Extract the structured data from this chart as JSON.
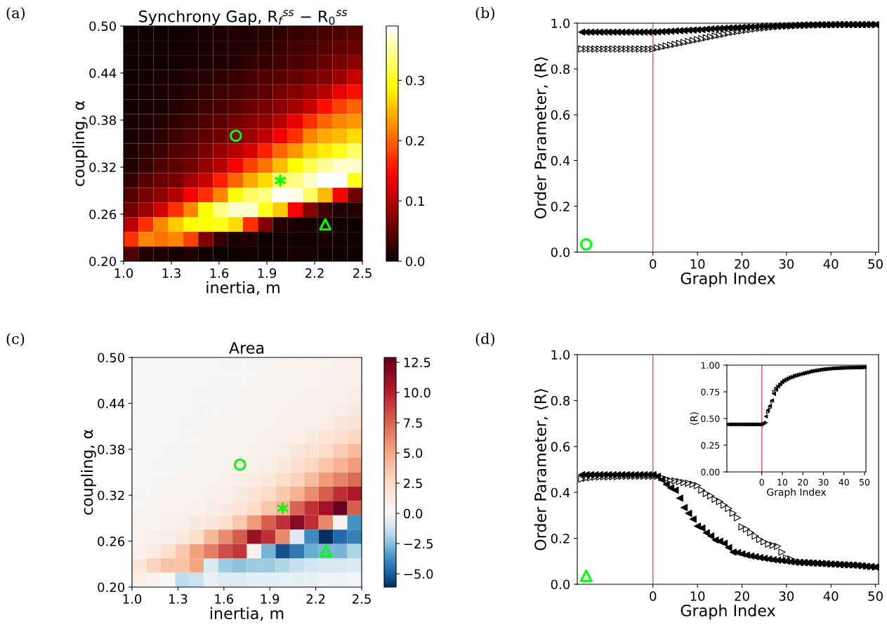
{
  "chart_data": [
    {
      "type": "heatmap",
      "title": "Synchrony Gap, R$_{f}$$^{ss}$ − R$_{0}$$^{ss}$",
      "xlabel": "inertia, m",
      "ylabel": "coupling, α",
      "annotations": [
        "(a)"
      ],
      "clim": [
        0,
        0.39
      ],
      "cticks": [
        {
          "value": 0,
          "label": "0.0"
        },
        {
          "value": 0.1,
          "label": "0.1"
        },
        {
          "value": 0.2,
          "label": "0.2"
        },
        {
          "value": 0.3,
          "label": "0.3"
        }
      ],
      "xlim": [
        1.0,
        2.5
      ],
      "ylim": [
        0.2,
        0.5
      ],
      "xticks": [
        {
          "value": 1.0,
          "label": "1.0"
        },
        {
          "value": 1.3,
          "label": "1.3"
        },
        {
          "value": 1.6,
          "label": "1.6"
        },
        {
          "value": 1.9,
          "label": "1.9"
        },
        {
          "value": 2.2,
          "label": "2.2"
        },
        {
          "value": 2.5,
          "label": "2.5"
        }
      ],
      "yticks": [
        {
          "value": 0.2,
          "label": "0.20"
        },
        {
          "value": 0.26,
          "label": "0.26"
        },
        {
          "value": 0.32,
          "label": "0.32"
        },
        {
          "value": 0.38,
          "label": "0.38"
        },
        {
          "value": 0.44,
          "label": "0.44"
        },
        {
          "value": 0.5,
          "label": "0.50"
        }
      ],
      "cells": [
        [
          0.005,
          0.005,
          0.005,
          0.006,
          0.006,
          0.008,
          0.012,
          0.014,
          0.014,
          0.018,
          0.022,
          0.026,
          0.03,
          0.035,
          0.04,
          0.045
        ],
        [
          0.004,
          0.005,
          0.005,
          0.006,
          0.007,
          0.01,
          0.013,
          0.016,
          0.018,
          0.022,
          0.027,
          0.032,
          0.038,
          0.045,
          0.05,
          0.055
        ],
        [
          0.004,
          0.005,
          0.006,
          0.007,
          0.009,
          0.012,
          0.015,
          0.018,
          0.022,
          0.027,
          0.032,
          0.038,
          0.045,
          0.055,
          0.065,
          0.075
        ],
        [
          0.004,
          0.006,
          0.008,
          0.01,
          0.014,
          0.018,
          0.022,
          0.028,
          0.034,
          0.04,
          0.046,
          0.054,
          0.062,
          0.07,
          0.085,
          0.11
        ],
        [
          0.005,
          0.007,
          0.01,
          0.013,
          0.018,
          0.024,
          0.03,
          0.036,
          0.042,
          0.05,
          0.06,
          0.07,
          0.085,
          0.1,
          0.13,
          0.15
        ],
        [
          0.006,
          0.009,
          0.012,
          0.016,
          0.022,
          0.03,
          0.038,
          0.045,
          0.055,
          0.065,
          0.075,
          0.09,
          0.11,
          0.15,
          0.18,
          0.2
        ],
        [
          0.008,
          0.012,
          0.016,
          0.022,
          0.03,
          0.04,
          0.05,
          0.06,
          0.07,
          0.08,
          0.1,
          0.13,
          0.17,
          0.2,
          0.22,
          0.23
        ],
        [
          0.01,
          0.015,
          0.02,
          0.03,
          0.04,
          0.05,
          0.06,
          0.07,
          0.085,
          0.105,
          0.14,
          0.17,
          0.22,
          0.24,
          0.25,
          0.27
        ],
        [
          0.012,
          0.02,
          0.03,
          0.04,
          0.05,
          0.065,
          0.085,
          0.1,
          0.12,
          0.16,
          0.2,
          0.23,
          0.26,
          0.28,
          0.3,
          0.33
        ],
        [
          0.015,
          0.025,
          0.04,
          0.05,
          0.06,
          0.08,
          0.1,
          0.14,
          0.18,
          0.21,
          0.25,
          0.29,
          0.32,
          0.35,
          0.37,
          0.37
        ],
        [
          0.025,
          0.045,
          0.055,
          0.065,
          0.09,
          0.11,
          0.16,
          0.2,
          0.24,
          0.27,
          0.33,
          0.34,
          0.37,
          0.39,
          0.39,
          0.3
        ],
        [
          0.045,
          0.065,
          0.075,
          0.1,
          0.14,
          0.17,
          0.22,
          0.29,
          0.33,
          0.34,
          0.39,
          0.38,
          0.33,
          0.25,
          0.14,
          0.06
        ],
        [
          0.06,
          0.085,
          0.115,
          0.17,
          0.22,
          0.29,
          0.34,
          0.37,
          0.37,
          0.3,
          0.26,
          0.14,
          0.07,
          0.03,
          0.015,
          0.015
        ],
        [
          0.105,
          0.17,
          0.22,
          0.26,
          0.29,
          0.29,
          0.3,
          0.27,
          0.17,
          0.07,
          0.015,
          0.01,
          0.008,
          0.008,
          0.006,
          0.006
        ],
        [
          0.17,
          0.22,
          0.21,
          0.22,
          0.18,
          0.07,
          0.025,
          0.01,
          0.015,
          0.003,
          0.005,
          0.005,
          0.005,
          0.01,
          0.004,
          0.004
        ],
        [
          0.04,
          0.015,
          0.012,
          0.008,
          0.015,
          0.004,
          0.003,
          0.003,
          0.006,
          0.005,
          0.005,
          0.009,
          0.007,
          0.006,
          0.004,
          0.004
        ]
      ],
      "series": [
        {
          "type": "scatter",
          "color": "#00ff00",
          "marker": "circle-open",
          "x": [
            1.705
          ],
          "values": [
            0.36
          ]
        },
        {
          "type": "scatter",
          "color": "#00ff00",
          "marker": "cross",
          "x": [
            1.984
          ],
          "values": [
            0.303
          ]
        },
        {
          "type": "scatter",
          "color": "#00ff00",
          "marker": "triangle-open",
          "x": [
            2.267
          ],
          "values": [
            0.247
          ]
        }
      ]
    },
    {
      "type": "scatter",
      "xlabel": "Graph Index",
      "ylabel": "Order Parameter, ⟨R⟩",
      "annotations": [
        "(b)"
      ],
      "xlim": [
        -17,
        50.7
      ],
      "ylim": [
        0,
        1
      ],
      "xticks": [
        0,
        10,
        20,
        30,
        40,
        50
      ],
      "yticks": [
        {
          "value": 0,
          "label": "0.0"
        },
        {
          "value": 0.2,
          "label": "0.2"
        },
        {
          "value": 0.4,
          "label": "0.4"
        },
        {
          "value": 0.6,
          "label": "0.6"
        },
        {
          "value": 0.8,
          "label": "0.8"
        },
        {
          "value": 1,
          "label": "1.0"
        }
      ],
      "ref_lines": [
        {
          "axis": "x",
          "value": 0,
          "color": "#f05050"
        }
      ],
      "x": [
        -16,
        -15,
        -14,
        -13,
        -12,
        -11,
        -10,
        -9,
        -8,
        -7,
        -6,
        -5,
        -4,
        -3,
        -2,
        -1,
        0,
        1,
        2,
        3,
        4,
        5,
        6,
        7,
        8,
        9,
        10,
        11,
        12,
        13,
        14,
        15,
        16,
        17,
        18,
        19,
        20,
        21,
        22,
        23,
        24,
        25,
        26,
        27,
        28,
        29,
        30,
        31,
        32,
        33,
        34,
        35,
        36,
        37,
        38,
        39,
        40,
        41,
        42,
        43,
        44,
        45,
        46,
        47,
        48,
        49,
        50
      ],
      "series": [
        {
          "color": "#000000",
          "marker": "triangle-right-open",
          "values": [
            0.887,
            0.887,
            0.887,
            0.887,
            0.887,
            0.887,
            0.887,
            0.887,
            0.887,
            0.887,
            0.887,
            0.887,
            0.887,
            0.887,
            0.887,
            0.887,
            0.887,
            0.892,
            0.896,
            0.9,
            0.904,
            0.908,
            0.912,
            0.916,
            0.92,
            0.924,
            0.928,
            0.932,
            0.936,
            0.94,
            0.944,
            0.948,
            0.952,
            0.956,
            0.96,
            0.963,
            0.966,
            0.969,
            0.972,
            0.975,
            0.977,
            0.979,
            0.981,
            0.983,
            0.985,
            0.986,
            0.987,
            0.988,
            0.989,
            0.99,
            0.991,
            0.991,
            0.992,
            0.992,
            0.993,
            0.993,
            0.993,
            0.994,
            0.994,
            0.994,
            0.994,
            0.994,
            0.994,
            0.994,
            0.994,
            0.994,
            0.994
          ]
        },
        {
          "color": "#000000",
          "marker": "triangle-left",
          "values": [
            0.961,
            0.961,
            0.961,
            0.961,
            0.961,
            0.961,
            0.961,
            0.961,
            0.961,
            0.961,
            0.961,
            0.961,
            0.961,
            0.961,
            0.961,
            0.961,
            0.961,
            0.962,
            0.963,
            0.964,
            0.965,
            0.966,
            0.967,
            0.968,
            0.969,
            0.97,
            0.971,
            0.972,
            0.974,
            0.975,
            0.976,
            0.977,
            0.978,
            0.979,
            0.98,
            0.981,
            0.982,
            0.983,
            0.984,
            0.985,
            0.986,
            0.987,
            0.987,
            0.988,
            0.989,
            0.989,
            0.99,
            0.99,
            0.991,
            0.991,
            0.992,
            0.992,
            0.992,
            0.993,
            0.993,
            0.993,
            0.993,
            0.994,
            0.994,
            0.994,
            0.994,
            0.994,
            0.994,
            0.994,
            0.994,
            0.994,
            0.994
          ]
        },
        {
          "color": "#00ff00",
          "marker": "circle-open",
          "x": [
            -15
          ],
          "values": [
            0.034
          ]
        }
      ]
    },
    {
      "type": "heatmap",
      "title": "Area",
      "xlabel": "inertia, m",
      "ylabel": "coupling, α",
      "annotations": [
        "(c)"
      ],
      "clim": [
        -6.1,
        12.9
      ],
      "cticks": [
        {
          "value": -5,
          "label": "−5.0"
        },
        {
          "value": -2.5,
          "label": "−2.5"
        },
        {
          "value": 0,
          "label": "0.0"
        },
        {
          "value": 2.5,
          "label": "2.5"
        },
        {
          "value": 5,
          "label": "5.0"
        },
        {
          "value": 7.5,
          "label": "7.5"
        },
        {
          "value": 10,
          "label": "10.0"
        },
        {
          "value": 12.5,
          "label": "12.5"
        }
      ],
      "xlim": [
        1.0,
        2.5
      ],
      "ylim": [
        0.2,
        0.5
      ],
      "xticks": [
        {
          "value": 1.0,
          "label": "1.0"
        },
        {
          "value": 1.3,
          "label": "1.3"
        },
        {
          "value": 1.6,
          "label": "1.6"
        },
        {
          "value": 1.9,
          "label": "1.9"
        },
        {
          "value": 2.2,
          "label": "2.2"
        },
        {
          "value": 2.5,
          "label": "2.5"
        }
      ],
      "yticks": [
        {
          "value": 0.2,
          "label": "0.20"
        },
        {
          "value": 0.26,
          "label": "0.26"
        },
        {
          "value": 0.32,
          "label": "0.32"
        },
        {
          "value": 0.38,
          "label": "0.38"
        },
        {
          "value": 0.44,
          "label": "0.44"
        },
        {
          "value": 0.5,
          "label": "0.50"
        }
      ],
      "cells": [
        [
          0.1,
          0.1,
          0.1,
          0.1,
          0.1,
          0.1,
          0.2,
          0.2,
          0.2,
          0.2,
          0.3,
          0.3,
          0.4,
          0.5,
          0.6,
          0.7
        ],
        [
          0.1,
          0.1,
          0.1,
          0.1,
          0.1,
          0.2,
          0.2,
          0.2,
          0.2,
          0.3,
          0.4,
          0.4,
          0.5,
          0.6,
          0.7,
          0.8
        ],
        [
          0.1,
          0.1,
          0.1,
          0.1,
          0.2,
          0.2,
          0.2,
          0.2,
          0.3,
          0.3,
          0.4,
          0.5,
          0.6,
          0.7,
          0.8,
          1.0
        ],
        [
          0.1,
          0.1,
          0.1,
          0.1,
          0.2,
          0.2,
          0.2,
          0.3,
          0.3,
          0.4,
          0.5,
          0.6,
          0.7,
          0.8,
          1.0,
          1.2
        ],
        [
          0.1,
          0.1,
          0.1,
          0.2,
          0.2,
          0.2,
          0.3,
          0.3,
          0.4,
          0.5,
          0.6,
          0.7,
          0.8,
          1.0,
          1.4,
          1.7
        ],
        [
          0.1,
          0.1,
          0.1,
          0.2,
          0.2,
          0.3,
          0.3,
          0.4,
          0.5,
          0.6,
          0.8,
          1.0,
          1.3,
          1.7,
          2.2,
          2.8
        ],
        [
          0.1,
          0.1,
          0.2,
          0.2,
          0.3,
          0.3,
          0.4,
          0.5,
          0.6,
          0.8,
          1.0,
          1.4,
          1.9,
          2.6,
          3.3,
          4.0
        ],
        [
          0.1,
          0.2,
          0.2,
          0.2,
          0.3,
          0.4,
          0.5,
          0.6,
          0.8,
          1.0,
          1.4,
          2.0,
          2.8,
          3.6,
          4.6,
          5.5
        ],
        [
          0.1,
          0.2,
          0.2,
          0.3,
          0.4,
          0.5,
          0.7,
          0.9,
          1.2,
          1.6,
          2.3,
          3.0,
          4.0,
          5.5,
          6.4,
          7.3
        ],
        [
          0.2,
          0.2,
          0.3,
          0.4,
          0.5,
          0.7,
          0.9,
          1.3,
          1.7,
          2.6,
          3.4,
          4.6,
          6.1,
          7.8,
          9.4,
          10.4
        ],
        [
          0.2,
          0.3,
          0.3,
          0.5,
          0.7,
          0.9,
          1.2,
          1.7,
          2.5,
          3.6,
          4.5,
          7.5,
          9.3,
          10.9,
          12.9,
          7.8
        ],
        [
          0.3,
          0.4,
          0.6,
          0.8,
          1.1,
          1.4,
          2.2,
          3.5,
          5.6,
          7.7,
          9.4,
          11.6,
          9.5,
          6.2,
          0.6,
          -3.6
        ],
        [
          0.4,
          0.6,
          0.9,
          1.3,
          2.3,
          4.2,
          6.1,
          7.8,
          11.1,
          9.4,
          6.2,
          -0.9,
          -3.8,
          -6.1,
          -4.7,
          -4.1
        ],
        [
          0.6,
          1.2,
          2.1,
          3.4,
          5.3,
          6.6,
          8.3,
          9.1,
          0.6,
          -2.8,
          -5.3,
          -4.3,
          -3.0,
          -2.8,
          -2.8,
          -1.9
        ],
        [
          1.6,
          2.9,
          3.8,
          3.8,
          5.1,
          -0.9,
          -2.2,
          -2.5,
          -2.2,
          -2.1,
          -1.8,
          -1.4,
          -1.1,
          -1.0,
          -1.0,
          -0.9
        ],
        [
          1.0,
          0.5,
          0.1,
          -1.5,
          -1.3,
          -0.4,
          -0.8,
          -0.8,
          -0.6,
          -0.6,
          -0.5,
          -0.4,
          -0.4,
          -0.3,
          -0.3,
          -0.2
        ]
      ],
      "series": [
        {
          "type": "scatter",
          "color": "#00ff00",
          "marker": "circle-open",
          "x": [
            1.705
          ],
          "values": [
            0.36
          ]
        },
        {
          "type": "scatter",
          "color": "#00ff00",
          "marker": "cross",
          "x": [
            1.984
          ],
          "values": [
            0.303
          ]
        },
        {
          "type": "scatter",
          "color": "#00ff00",
          "marker": "triangle-open",
          "x": [
            2.267
          ],
          "values": [
            0.247
          ]
        }
      ]
    },
    {
      "type": "scatter",
      "xlabel": "Graph Index",
      "ylabel": "Order Parameter, ⟨R⟩",
      "annotations": [
        "(d)"
      ],
      "xlim": [
        -17,
        50.7
      ],
      "ylim": [
        0,
        1
      ],
      "xticks": [
        0,
        10,
        20,
        30,
        40,
        50
      ],
      "yticks": [
        {
          "value": 0,
          "label": "0.0"
        },
        {
          "value": 0.2,
          "label": "0.2"
        },
        {
          "value": 0.4,
          "label": "0.4"
        },
        {
          "value": 0.6,
          "label": "0.6"
        },
        {
          "value": 0.8,
          "label": "0.8"
        },
        {
          "value": 1,
          "label": "1.0"
        }
      ],
      "ref_lines": [
        {
          "axis": "x",
          "value": 0,
          "color": "#f05050"
        }
      ],
      "x": [
        -16,
        -15,
        -14,
        -13,
        -12,
        -11,
        -10,
        -9,
        -8,
        -7,
        -6,
        -5,
        -4,
        -3,
        -2,
        -1,
        0,
        1,
        2,
        3,
        4,
        5,
        6,
        7,
        8,
        9,
        10,
        11,
        12,
        13,
        14,
        15,
        16,
        17,
        18,
        19,
        20,
        21,
        22,
        23,
        24,
        25,
        26,
        27,
        28,
        29,
        30,
        31,
        32,
        33,
        34,
        35,
        36,
        37,
        38,
        39,
        40,
        41,
        42,
        43,
        44,
        45,
        46,
        47,
        48,
        49,
        50
      ],
      "series": [
        {
          "color": "#000000",
          "marker": "triangle-right-open",
          "values": [
            0.458,
            0.462,
            0.464,
            0.466,
            0.467,
            0.468,
            0.468,
            0.469,
            0.469,
            0.47,
            0.47,
            0.47,
            0.47,
            0.47,
            0.47,
            0.47,
            0.47,
            0.47,
            0.465,
            0.458,
            0.452,
            0.45,
            0.447,
            0.443,
            0.44,
            0.435,
            0.43,
            0.41,
            0.395,
            0.385,
            0.37,
            0.36,
            0.345,
            0.33,
            0.31,
            0.29,
            0.25,
            0.24,
            0.225,
            0.21,
            0.195,
            0.185,
            0.175,
            0.17,
            0.165,
            0.14,
            0.115,
            0.11,
            0.1,
            0.096,
            0.095,
            0.094,
            0.093,
            0.092,
            0.091,
            0.09,
            0.089,
            0.088,
            0.087,
            0.086,
            0.085,
            0.084,
            0.083,
            0.081,
            0.079,
            0.077,
            0.075
          ]
        },
        {
          "color": "#000000",
          "marker": "triangle-left",
          "values": [
            0.477,
            0.477,
            0.477,
            0.477,
            0.477,
            0.477,
            0.477,
            0.477,
            0.477,
            0.477,
            0.477,
            0.477,
            0.477,
            0.477,
            0.477,
            0.477,
            0.477,
            0.47,
            0.455,
            0.435,
            0.42,
            0.41,
            0.375,
            0.334,
            0.309,
            0.284,
            0.253,
            0.245,
            0.224,
            0.21,
            0.193,
            0.187,
            0.178,
            0.16,
            0.14,
            0.138,
            0.132,
            0.127,
            0.123,
            0.12,
            0.116,
            0.113,
            0.11,
            0.107,
            0.105,
            0.103,
            0.1,
            0.098,
            0.096,
            0.095,
            0.094,
            0.093,
            0.092,
            0.091,
            0.09,
            0.089,
            0.088,
            0.087,
            0.086,
            0.085,
            0.084,
            0.083,
            0.082,
            0.08,
            0.078,
            0.077,
            0.075
          ]
        },
        {
          "color": "#00ff00",
          "marker": "triangle-open",
          "x": [
            -15
          ],
          "values": [
            0.037
          ]
        }
      ]
    },
    {
      "type": "scatter",
      "xlabel": "Graph Index",
      "ylabel": "⟨R⟩",
      "xlim": [
        -17,
        50.7
      ],
      "ylim": [
        0,
        1
      ],
      "xticks": [
        0,
        10,
        20,
        30,
        40,
        50
      ],
      "yticks": [
        {
          "value": 0,
          "label": "0.00"
        },
        {
          "value": 0.25,
          "label": "0.25"
        },
        {
          "value": 0.5,
          "label": "0.50"
        },
        {
          "value": 0.75,
          "label": "0.75"
        },
        {
          "value": 1,
          "label": "1.00"
        }
      ],
      "ref_lines": [
        {
          "axis": "x",
          "value": 0,
          "color": "#f05050"
        }
      ],
      "x": [
        -16,
        -15,
        -14,
        -13,
        -12,
        -11,
        -10,
        -9,
        -8,
        -7,
        -6,
        -5,
        -4,
        -3,
        -2,
        -1,
        0,
        1,
        2,
        3,
        4,
        5,
        6,
        7,
        8,
        9,
        10,
        11,
        12,
        13,
        14,
        15,
        16,
        17,
        18,
        19,
        20,
        21,
        22,
        23,
        24,
        25,
        26,
        27,
        28,
        29,
        30,
        31,
        32,
        33,
        34,
        35,
        36,
        37,
        38,
        39,
        40,
        41,
        42,
        43,
        44,
        45,
        46,
        47,
        48,
        49,
        50
      ],
      "series": [
        {
          "color": "#000000",
          "marker": "triangle-right-open",
          "values": [
            0.445,
            0.445,
            0.445,
            0.445,
            0.445,
            0.445,
            0.445,
            0.445,
            0.445,
            0.445,
            0.445,
            0.445,
            0.445,
            0.445,
            0.445,
            0.445,
            0.445,
            0.45,
            0.46,
            0.56,
            0.6,
            0.66,
            0.75,
            0.78,
            0.8,
            0.82,
            0.84,
            0.855,
            0.865,
            0.875,
            0.885,
            0.89,
            0.9,
            0.905,
            0.91,
            0.915,
            0.92,
            0.925,
            0.93,
            0.935,
            0.94,
            0.945,
            0.948,
            0.951,
            0.954,
            0.957,
            0.96,
            0.962,
            0.964,
            0.966,
            0.968,
            0.97,
            0.971,
            0.972,
            0.973,
            0.974,
            0.975,
            0.976,
            0.976,
            0.977,
            0.977,
            0.978,
            0.978,
            0.979,
            0.979,
            0.98,
            0.98
          ]
        },
        {
          "color": "#000000",
          "marker": "triangle-left",
          "values": [
            0.445,
            0.445,
            0.445,
            0.445,
            0.445,
            0.445,
            0.445,
            0.445,
            0.445,
            0.445,
            0.445,
            0.445,
            0.445,
            0.445,
            0.445,
            0.445,
            0.445,
            0.46,
            0.52,
            0.58,
            0.62,
            0.67,
            0.73,
            0.77,
            0.8,
            0.82,
            0.84,
            0.855,
            0.865,
            0.875,
            0.885,
            0.89,
            0.9,
            0.905,
            0.91,
            0.915,
            0.92,
            0.925,
            0.93,
            0.935,
            0.94,
            0.945,
            0.948,
            0.951,
            0.954,
            0.957,
            0.96,
            0.962,
            0.964,
            0.966,
            0.968,
            0.97,
            0.971,
            0.972,
            0.973,
            0.974,
            0.975,
            0.976,
            0.976,
            0.977,
            0.977,
            0.978,
            0.978,
            0.979,
            0.979,
            0.98,
            0.98
          ]
        }
      ]
    }
  ]
}
